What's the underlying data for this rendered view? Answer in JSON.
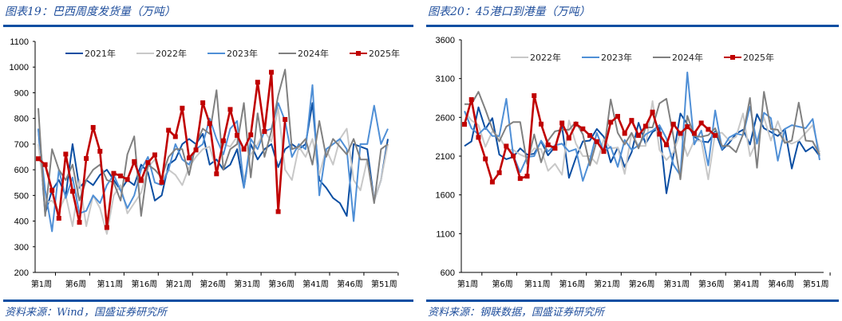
{
  "chart_data": [
    {
      "type": "line",
      "title": "图表19：巴西周度发货量（万吨）",
      "source": "资料来源：Wind，国盛证券研究所",
      "ylabel": "万吨",
      "ylim": [
        200,
        1100
      ],
      "yticks": [
        200,
        300,
        400,
        500,
        600,
        700,
        800,
        900,
        1000,
        1100
      ],
      "xtick_labels": [
        "第1周",
        "第6周",
        "第11周",
        "第16周",
        "第21周",
        "第26周",
        "第31周",
        "第36周",
        "第41周",
        "第46周",
        "第51周"
      ],
      "legend_position": "top",
      "series": [
        {
          "name": "2021年",
          "color": "#0b4ea2",
          "marker": false,
          "values": [
            760,
            430,
            520,
            560,
            500,
            700,
            530,
            560,
            540,
            580,
            600,
            560,
            520,
            560,
            540,
            620,
            590,
            480,
            500,
            620,
            640,
            700,
            720,
            700,
            740,
            620,
            640,
            600,
            620,
            680,
            530,
            700,
            640,
            680,
            700,
            610,
            680,
            700,
            680,
            700,
            860,
            560,
            530,
            490,
            470,
            420,
            700,
            690,
            680,
            480,
            560,
            720
          ]
        },
        {
          "name": "2022年",
          "color": "#c8c8c8",
          "marker": false,
          "values": [
            700,
            470,
            480,
            440,
            500,
            380,
            560,
            380,
            500,
            450,
            350,
            500,
            540,
            430,
            470,
            510,
            610,
            640,
            560,
            600,
            580,
            540,
            610,
            650,
            680,
            690,
            600,
            700,
            690,
            730,
            560,
            660,
            700,
            750,
            710,
            840,
            600,
            560,
            690,
            650,
            720,
            580,
            680,
            620,
            720,
            760,
            560,
            520,
            640,
            480,
            560,
            700
          ]
        },
        {
          "name": "2023年",
          "color": "#4f8fd6",
          "marker": false,
          "values": [
            760,
            520,
            360,
            600,
            490,
            570,
            430,
            440,
            500,
            470,
            540,
            580,
            520,
            450,
            500,
            600,
            650,
            550,
            540,
            600,
            700,
            640,
            620,
            680,
            700,
            800,
            720,
            660,
            760,
            790,
            530,
            720,
            680,
            750,
            760,
            860,
            790,
            650,
            700,
            680,
            930,
            500,
            680,
            700,
            720,
            680,
            400,
            700,
            700,
            850,
            700,
            760
          ]
        },
        {
          "name": "2024年",
          "color": "#808080",
          "marker": false,
          "values": [
            840,
            420,
            680,
            600,
            560,
            620,
            480,
            560,
            600,
            620,
            560,
            550,
            480,
            660,
            730,
            420,
            620,
            600,
            570,
            650,
            680,
            680,
            580,
            700,
            760,
            740,
            910,
            600,
            680,
            700,
            860,
            570,
            820,
            650,
            750,
            890,
            990,
            680,
            690,
            720,
            620,
            790,
            650,
            720,
            690,
            660,
            720,
            640,
            640,
            470,
            680,
            700
          ]
        },
        {
          "name": "2025年",
          "color": "#c00000",
          "marker": true,
          "values": [
            643,
            620,
            520,
            411,
            661,
            516,
            395,
            644,
            765,
            672,
            375,
            586,
            576,
            562,
            632,
            558,
            628,
            658,
            551,
            754,
            729,
            840,
            646,
            677,
            861,
            780,
            584,
            713,
            835,
            734,
            680,
            736,
            941,
            749,
            980,
            437,
            796
          ]
        }
      ]
    },
    {
      "type": "line",
      "title": "图表20：45港口到港量（万吨）",
      "source": "资料来源：钢联数据，国盛证券研究所",
      "ylabel": "万吨",
      "ylim": [
        600,
        3600
      ],
      "yticks": [
        600,
        1100,
        1600,
        2100,
        2600,
        3100,
        3600
      ],
      "xtick_labels": [
        "第1周",
        "第6周",
        "第11周",
        "第16周",
        "第21周",
        "第26周",
        "第31周",
        "第36周",
        "第41周",
        "第46周",
        "第51周"
      ],
      "legend_position": "top",
      "series": [
        {
          "name": "",
          "color": "#0b4ea2",
          "marker": false,
          "legend": false,
          "values": [
            2230,
            2290,
            2730,
            2450,
            2590,
            2120,
            2060,
            2090,
            2200,
            2120,
            2130,
            2290,
            2110,
            2220,
            2480,
            1820,
            2080,
            2290,
            2300,
            2450,
            2350,
            2020,
            2210,
            1960,
            2150,
            2530,
            2260,
            2410,
            2470,
            1620,
            2110,
            2650,
            2510,
            2350,
            2290,
            2280,
            2420,
            2180,
            2270,
            2390,
            2440,
            2250,
            2640,
            2460,
            2410,
            2360,
            2450,
            1940,
            2300,
            2160,
            2220,
            2100
          ]
        },
        {
          "name": "2022年",
          "color": "#c8c8c8",
          "marker": false,
          "values": [
            2680,
            2560,
            2500,
            2220,
            2420,
            2350,
            2190,
            2180,
            2120,
            2080,
            2200,
            2190,
            1910,
            2000,
            1860,
            2560,
            2260,
            2100,
            2100,
            2000,
            2320,
            2200,
            2210,
            1870,
            2400,
            2230,
            2230,
            2810,
            2180,
            2050,
            2150,
            2400,
            2100,
            2300,
            2300,
            1800,
            2400,
            2400,
            2300,
            2350,
            2650,
            2100,
            2300,
            2600,
            2300,
            2550,
            2300,
            2260,
            2300,
            2400,
            2500,
            2150
          ]
        },
        {
          "name": "2023年",
          "color": "#4f8fd6",
          "marker": false,
          "values": [
            2680,
            2460,
            2380,
            2470,
            2360,
            2360,
            2840,
            2110,
            1890,
            2090,
            2100,
            2300,
            2160,
            2240,
            2260,
            2160,
            2190,
            1780,
            2050,
            2400,
            2160,
            2220,
            1960,
            2310,
            2180,
            2240,
            2380,
            2430,
            2500,
            2330,
            1990,
            1850,
            3180,
            2250,
            2430,
            1980,
            2690,
            2190,
            2340,
            2390,
            2370,
            2740,
            2260,
            2660,
            2590,
            2040,
            2450,
            2500,
            2480,
            2460,
            2580,
            2050
          ]
        },
        {
          "name": "2024年",
          "color": "#808080",
          "marker": false,
          "values": [
            2770,
            2770,
            2930,
            2700,
            2450,
            2290,
            2480,
            2540,
            2540,
            2000,
            2380,
            2020,
            2300,
            2420,
            2440,
            2440,
            2540,
            2380,
            1980,
            2300,
            2150,
            2830,
            2400,
            2250,
            2400,
            2200,
            2470,
            2470,
            2780,
            2840,
            2350,
            1800,
            2620,
            2360,
            2350,
            2370,
            2460,
            2230,
            2230,
            2150,
            2380,
            2850,
            1950,
            2930,
            2450,
            2440,
            2270,
            2300,
            2790,
            2300,
            2290,
            2120
          ]
        },
        {
          "name": "2025年",
          "color": "#c00000",
          "marker": true,
          "values": [
            2510,
            2829,
            2342,
            2064,
            1766,
            1886,
            2229,
            2102,
            1811,
            1841,
            2880,
            2513,
            2246,
            2201,
            2527,
            2332,
            2513,
            2452,
            2366,
            2287,
            2160,
            2537,
            2613,
            2393,
            2561,
            2366,
            2486,
            2668,
            2383,
            2246,
            2513,
            2393,
            2479,
            2393,
            2527,
            2445,
            2366
          ]
        }
      ]
    }
  ]
}
